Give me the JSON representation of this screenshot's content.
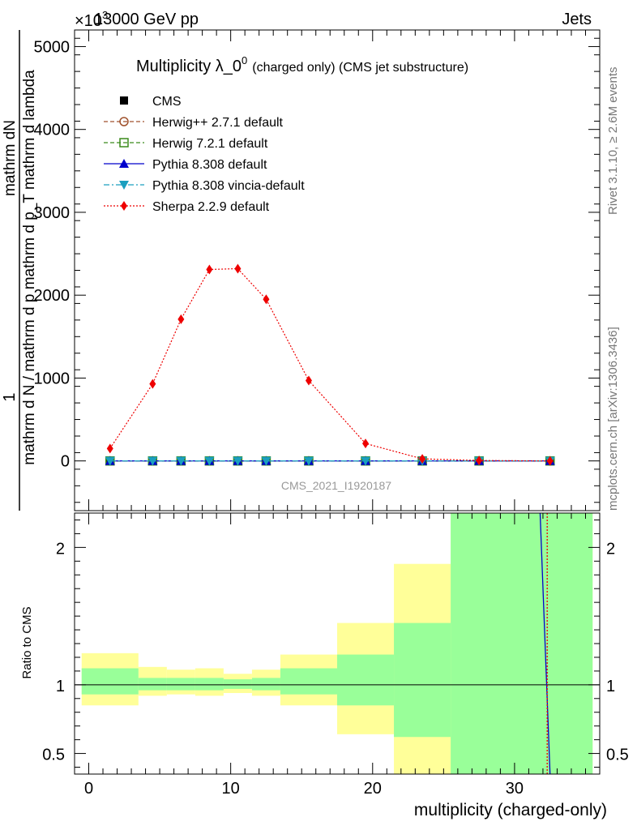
{
  "header": {
    "left_label": "13000 GeV pp",
    "right_label": "Jets",
    "exponent_label": "×10",
    "exponent_power": "3"
  },
  "side_labels": {
    "rivet": "Rivet 3.1.10, ≥ 2.6M events",
    "mcplots": "mcplots.cern.ch [arXiv:1306.3436]"
  },
  "chart_data": [
    {
      "type": "line",
      "panel": "main",
      "title": "Multiplicity λ_0",
      "title_sup": "0",
      "title_suffix": "(charged only) (CMS jet substructure)",
      "watermark": "CMS_2021_I1920187",
      "ylabel_numerator": "1",
      "ylabel_line1": "mathrm d N / mathrm d p",
      "ylabel_line2": "mathrm dN",
      "ylabel_line3": "mathrm d p_T mathrm d lambda",
      "ylabel_main": "mathrm d N / mathrm d p mathrm d p_T mathrm d lambda",
      "ylabel_top": "mathrm dN",
      "yscale_factor": 1000,
      "ylim": [
        -600,
        5200
      ],
      "yticks": [
        0,
        1000,
        2000,
        3000,
        4000,
        5000
      ],
      "ytick_labels": [
        "0",
        "1000",
        "2000",
        "3000",
        "4000",
        "5000"
      ],
      "xlim": [
        -1,
        36
      ],
      "legend_position": "top-left",
      "series": [
        {
          "name": "CMS",
          "color": "#000000",
          "marker": "square-filled",
          "x": [
            1.5,
            4.5,
            6.5,
            8.5,
            10.5,
            12.5,
            15.5,
            19.5,
            23.5,
            27.5,
            32.5
          ],
          "y": [
            0,
            0,
            0,
            0,
            0,
            0,
            0,
            0,
            0,
            0,
            0
          ]
        },
        {
          "name": "Herwig++ 2.7.1 default",
          "color": "#a0522d",
          "marker": "circle-open",
          "line": "dashed",
          "x": [
            1.5,
            4.5,
            6.5,
            8.5,
            10.5,
            12.5,
            15.5,
            19.5,
            23.5,
            27.5,
            32.5
          ],
          "y": [
            0,
            0,
            0,
            0,
            0,
            0,
            0,
            0,
            0,
            0,
            0
          ]
        },
        {
          "name": "Herwig 7.2.1 default",
          "color": "#3a8a1a",
          "marker": "square-open",
          "line": "dashed",
          "x": [
            1.5,
            4.5,
            6.5,
            8.5,
            10.5,
            12.5,
            15.5,
            19.5,
            23.5,
            27.5,
            32.5
          ],
          "y": [
            0,
            0,
            0,
            0,
            0,
            0,
            0,
            0,
            0,
            0,
            0
          ]
        },
        {
          "name": "Pythia 8.308 default",
          "color": "#0000cc",
          "marker": "triangle-up",
          "line": "solid",
          "x": [
            1.5,
            4.5,
            6.5,
            8.5,
            10.5,
            12.5,
            15.5,
            19.5,
            23.5,
            27.5,
            32.5
          ],
          "y": [
            0,
            0,
            0,
            0,
            0,
            0,
            0,
            0,
            0,
            0,
            0
          ]
        },
        {
          "name": "Pythia 8.308 vincia-default",
          "color": "#1a9fbf",
          "marker": "triangle-down",
          "line": "dashdot",
          "x": [
            1.5,
            4.5,
            6.5,
            8.5,
            10.5,
            12.5,
            15.5,
            19.5,
            23.5,
            27.5,
            32.5
          ],
          "y": [
            0,
            0,
            0,
            0,
            0,
            0,
            0,
            0,
            0,
            0,
            0
          ]
        },
        {
          "name": "Sherpa 2.2.9 default",
          "color": "#ee0000",
          "marker": "diamond",
          "line": "dotted",
          "x": [
            1.5,
            4.5,
            6.5,
            8.5,
            10.5,
            12.5,
            15.5,
            19.5,
            23.5,
            27.5,
            32.5
          ],
          "y": [
            150,
            930,
            1710,
            2310,
            2320,
            1950,
            970,
            210,
            25,
            5,
            0
          ]
        }
      ]
    },
    {
      "type": "area",
      "panel": "ratio",
      "ylabel": "Ratio to CMS",
      "xlabel": "multiplicity (charged-only)",
      "xlim": [
        -1,
        36
      ],
      "ylim": [
        0.35,
        2.25
      ],
      "xticks": [
        0,
        10,
        20,
        30
      ],
      "xtick_labels": [
        "0",
        "10",
        "20",
        "30"
      ],
      "yticks": [
        0.5,
        1,
        2
      ],
      "ytick_labels": [
        "0.5",
        "1",
        "2"
      ],
      "bins": [
        {
          "lo": -0.5,
          "hi": 3.5,
          "stat_lo": 0.93,
          "stat_hi": 1.12,
          "tot_lo": 0.85,
          "tot_hi": 1.23
        },
        {
          "lo": 3.5,
          "hi": 5.5,
          "stat_lo": 0.96,
          "stat_hi": 1.05,
          "tot_lo": 0.92,
          "tot_hi": 1.13
        },
        {
          "lo": 5.5,
          "hi": 7.5,
          "stat_lo": 0.96,
          "stat_hi": 1.05,
          "tot_lo": 0.93,
          "tot_hi": 1.11
        },
        {
          "lo": 7.5,
          "hi": 9.5,
          "stat_lo": 0.96,
          "stat_hi": 1.05,
          "tot_lo": 0.92,
          "tot_hi": 1.12
        },
        {
          "lo": 9.5,
          "hi": 11.5,
          "stat_lo": 0.97,
          "stat_hi": 1.04,
          "tot_lo": 0.94,
          "tot_hi": 1.08
        },
        {
          "lo": 11.5,
          "hi": 13.5,
          "stat_lo": 0.96,
          "stat_hi": 1.05,
          "tot_lo": 0.92,
          "tot_hi": 1.11
        },
        {
          "lo": 13.5,
          "hi": 17.5,
          "stat_lo": 0.93,
          "stat_hi": 1.12,
          "tot_lo": 0.85,
          "tot_hi": 1.22
        },
        {
          "lo": 17.5,
          "hi": 21.5,
          "stat_lo": 0.85,
          "stat_hi": 1.22,
          "tot_lo": 0.64,
          "tot_hi": 1.45
        },
        {
          "lo": 21.5,
          "hi": 25.5,
          "stat_lo": 0.62,
          "stat_hi": 1.45,
          "tot_lo": 0.35,
          "tot_hi": 1.88
        },
        {
          "lo": 25.5,
          "hi": 35.5,
          "stat_lo": 0.35,
          "stat_hi": 2.25,
          "tot_lo": 0.35,
          "tot_hi": 2.25
        }
      ],
      "lines": [
        {
          "name": "Pythia 8.308 default",
          "color": "#0000cc",
          "x": [
            31.8,
            32.5
          ],
          "y": [
            2.25,
            0.35
          ]
        },
        {
          "name": "Sherpa 2.2.9 default",
          "color": "#ee0000",
          "x": [
            32.3,
            32.3
          ],
          "y": [
            2.25,
            0.35
          ]
        }
      ],
      "colors": {
        "stat": "#99ff99",
        "tot": "#ffff99"
      }
    }
  ]
}
